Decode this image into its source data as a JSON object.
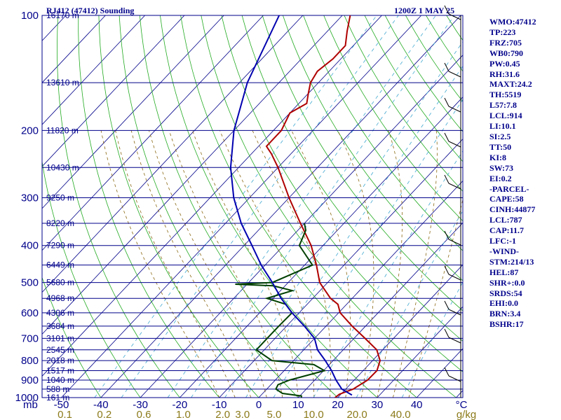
{
  "header": {
    "station": "RJ412 (47412) Sounding",
    "time": "1200Z  1 MAY 25"
  },
  "stats": [
    "WMO:47412",
    "TP:223",
    "FRZ:705",
    "WB0:790",
    "PW:0.45",
    "RH:31.6",
    "MAXT:24.2",
    "TH:5519",
    "L57:7.8",
    "LCL:914",
    "LI:10.1",
    "SI:2.5",
    "TT:50",
    "KI:8",
    "SW:73",
    "EI:0.2",
    "-PARCEL-",
    "CAPE:58",
    "CINH:44877",
    "LCL:787",
    "CAP:11.7",
    "LFC:-1",
    "-WIND-",
    "STM:214/13",
    "HEL:87",
    "SHR+:0.0",
    "SRDS:54",
    "EHI:0.0",
    "BRN:3.4",
    "BSHR:17"
  ],
  "chart_data": {
    "type": "line",
    "title": "RJ412 (47412) Sounding",
    "xlabel": "",
    "ylabel": "mb",
    "x_axis_unit": "°C",
    "pressure_ticks": [
      {
        "p": 100,
        "label": "100"
      },
      {
        "p": 200,
        "label": "200"
      },
      {
        "p": 300,
        "label": "300"
      },
      {
        "p": 400,
        "label": "400"
      },
      {
        "p": 500,
        "label": "500"
      },
      {
        "p": 600,
        "label": "600"
      },
      {
        "p": 700,
        "label": "700"
      },
      {
        "p": 800,
        "label": "800"
      },
      {
        "p": 900,
        "label": "900"
      },
      {
        "p": 1000,
        "label": "1000"
      }
    ],
    "temperature_ticks": [
      {
        "t": -50,
        "label": "-50"
      },
      {
        "t": -40,
        "label": "-40"
      },
      {
        "t": -30,
        "label": "-30"
      },
      {
        "t": -20,
        "label": "-20"
      },
      {
        "t": -10,
        "label": "-10"
      },
      {
        "t": 0,
        "label": "0"
      },
      {
        "t": 10,
        "label": "10"
      },
      {
        "t": 20,
        "label": "20"
      },
      {
        "t": 30,
        "label": "30"
      },
      {
        "t": 40,
        "label": "40"
      }
    ],
    "mixing_ratio_ticks": [
      {
        "t": -50,
        "label": "0.1"
      },
      {
        "t": -40,
        "label": "0.2"
      },
      {
        "t": -30,
        "label": "0.6"
      },
      {
        "t": -20,
        "label": "1.0"
      },
      {
        "t": -10,
        "label": "2.0"
      },
      {
        "t": -5,
        "label": "3.0"
      },
      {
        "t": 3,
        "label": "5.0"
      },
      {
        "t": 13,
        "label": "10.0"
      },
      {
        "t": 24,
        "label": "20.0"
      },
      {
        "t": 35,
        "label": "40.0"
      }
    ],
    "mixing_ratio_unit": "g/kg",
    "heights": [
      {
        "p": 100,
        "label": "16170 m"
      },
      {
        "p": 150,
        "label": "13610 m"
      },
      {
        "p": 200,
        "label": "11820 m"
      },
      {
        "p": 250,
        "label": "10430 m"
      },
      {
        "p": 300,
        "label": "9250 m"
      },
      {
        "p": 350,
        "label": "8220 m"
      },
      {
        "p": 400,
        "label": "7290 m"
      },
      {
        "p": 450,
        "label": "6449 m"
      },
      {
        "p": 500,
        "label": "5680 m"
      },
      {
        "p": 550,
        "label": "4968 m"
      },
      {
        "p": 600,
        "label": "4306 m"
      },
      {
        "p": 650,
        "label": "3684 m"
      },
      {
        "p": 700,
        "label": "3101 m"
      },
      {
        "p": 750,
        "label": "2545 m"
      },
      {
        "p": 800,
        "label": "2018 m"
      },
      {
        "p": 850,
        "label": "1517 m"
      },
      {
        "p": 900,
        "label": "1040 m"
      },
      {
        "p": 950,
        "label": "588 m"
      },
      {
        "p": 1000,
        "label": "161 m"
      }
    ],
    "series": [
      {
        "name": "Temperature",
        "color": "#b00000",
        "points": [
          [
            1000,
            19.3
          ],
          [
            980,
            19.6
          ],
          [
            950,
            21.9
          ],
          [
            900,
            23.4
          ],
          [
            850,
            23.5
          ],
          [
            800,
            21.9
          ],
          [
            750,
            18.5
          ],
          [
            700,
            12.8
          ],
          [
            650,
            6.6
          ],
          [
            600,
            0.4
          ],
          [
            570,
            -2.2
          ],
          [
            550,
            -5.5
          ],
          [
            500,
            -12
          ],
          [
            450,
            -17
          ],
          [
            400,
            -23
          ],
          [
            350,
            -31
          ],
          [
            300,
            -40
          ],
          [
            250,
            -50
          ],
          [
            230,
            -55
          ],
          [
            220,
            -58
          ],
          [
            200,
            -58
          ],
          [
            180,
            -60
          ],
          [
            170,
            -58
          ],
          [
            160,
            -60
          ],
          [
            150,
            -62
          ],
          [
            140,
            -63
          ],
          [
            130,
            -62
          ],
          [
            120,
            -62
          ],
          [
            110,
            -65
          ],
          [
            100,
            -68
          ]
        ]
      },
      {
        "name": "Dewpoint",
        "color": "#004000",
        "points": [
          [
            1000,
            10.8
          ],
          [
            990,
            10.4
          ],
          [
            975,
            5
          ],
          [
            950,
            2.3
          ],
          [
            925,
            1.8
          ],
          [
            900,
            3.6
          ],
          [
            850,
            10.2
          ],
          [
            820,
            6.1
          ],
          [
            800,
            -5.5
          ],
          [
            750,
            -12
          ],
          [
            700,
            -12
          ],
          [
            650,
            -12
          ],
          [
            600,
            -11.8
          ],
          [
            570,
            -15.4
          ],
          [
            550,
            -21.6
          ],
          [
            525,
            -17
          ],
          [
            510,
            -23
          ],
          [
            505,
            -33
          ],
          [
            500,
            -24
          ],
          [
            450,
            -18
          ],
          [
            400,
            -26
          ],
          [
            365,
            -28
          ],
          [
            350,
            -30
          ]
        ]
      },
      {
        "name": "Parcel",
        "color": "#0000b0",
        "points": [
          [
            985,
            23
          ],
          [
            950,
            19
          ],
          [
            900,
            15.4
          ],
          [
            850,
            12
          ],
          [
            800,
            8
          ],
          [
            750,
            3.5
          ],
          [
            700,
            0
          ],
          [
            650,
            -5.5
          ],
          [
            600,
            -11.8
          ],
          [
            550,
            -18
          ],
          [
            500,
            -24
          ],
          [
            450,
            -31
          ],
          [
            400,
            -38
          ],
          [
            350,
            -46
          ],
          [
            300,
            -54
          ],
          [
            250,
            -62
          ],
          [
            200,
            -70
          ],
          [
            150,
            -78
          ],
          [
            100,
            -86
          ]
        ]
      }
    ]
  }
}
